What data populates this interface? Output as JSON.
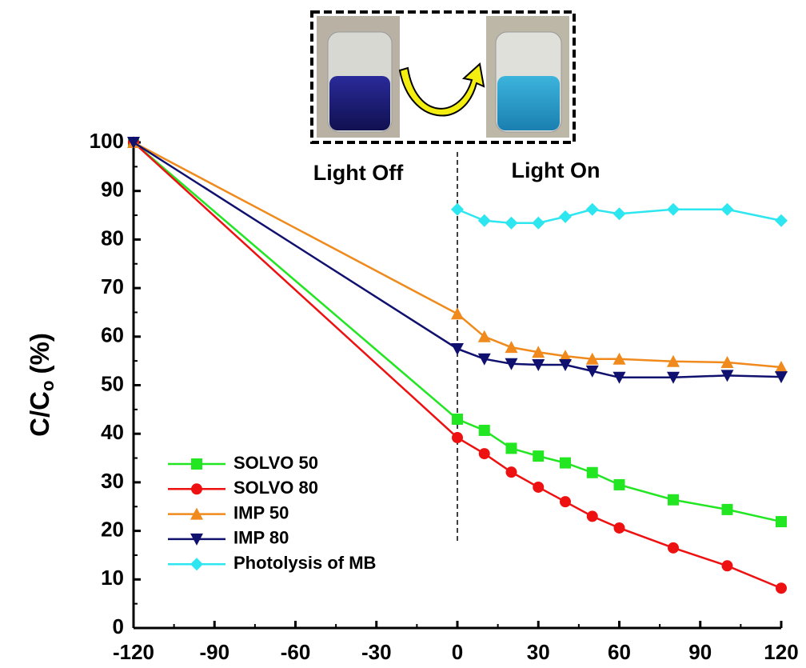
{
  "chart_data": {
    "type": "line",
    "ylabel": "C/C",
    "ylabel_sub": "o",
    "ylabel_unit": "(%)",
    "annotations": [
      "Light Off",
      "Light On"
    ],
    "divider_x": 0,
    "xlim": [
      -120,
      120
    ],
    "xticks": [
      -120,
      -90,
      -60,
      -30,
      0,
      30,
      60,
      90,
      120
    ],
    "ylim": [
      0,
      100
    ],
    "yticks": [
      0,
      10,
      20,
      30,
      40,
      50,
      60,
      70,
      80,
      90,
      100
    ],
    "series": [
      {
        "name": "SOLVO 50",
        "color": "#22e622",
        "marker": "square",
        "x": [
          -120,
          0,
          10,
          20,
          30,
          40,
          50,
          60,
          80,
          100,
          120
        ],
        "values": [
          100,
          43,
          40.7,
          37,
          35.4,
          34,
          32,
          29.5,
          26.4,
          24.4,
          21.9
        ]
      },
      {
        "name": "SOLVO 80",
        "color": "#ee1111",
        "marker": "circle",
        "x": [
          -120,
          0,
          10,
          20,
          30,
          40,
          50,
          60,
          80,
          100,
          120
        ],
        "values": [
          100,
          39.2,
          35.9,
          32.1,
          29,
          26,
          23,
          20.6,
          16.5,
          12.8,
          8.2
        ]
      },
      {
        "name": "IMP 50",
        "color": "#f08a1c",
        "marker": "triangle-up",
        "x": [
          -120,
          0,
          10,
          20,
          30,
          40,
          50,
          60,
          80,
          100,
          120
        ],
        "values": [
          100,
          64.7,
          60,
          57.8,
          56.8,
          56,
          55.4,
          55.4,
          54.9,
          54.7,
          53.7
        ]
      },
      {
        "name": "IMP 80",
        "color": "#10106e",
        "marker": "triangle-down",
        "x": [
          -120,
          0,
          10,
          20,
          30,
          40,
          50,
          60,
          80,
          100,
          120
        ],
        "values": [
          100,
          57.5,
          55.4,
          54.4,
          54.2,
          54.2,
          52.9,
          51.6,
          51.6,
          52,
          51.7
        ]
      },
      {
        "name": "Photolysis of MB",
        "color": "#2ee6f0",
        "marker": "diamond",
        "x": [
          0,
          10,
          20,
          30,
          40,
          50,
          60,
          80,
          100,
          120
        ],
        "values": [
          86.2,
          83.9,
          83.4,
          83.4,
          84.7,
          86.2,
          85.3,
          86.2,
          86.2,
          83.9
        ]
      }
    ]
  }
}
